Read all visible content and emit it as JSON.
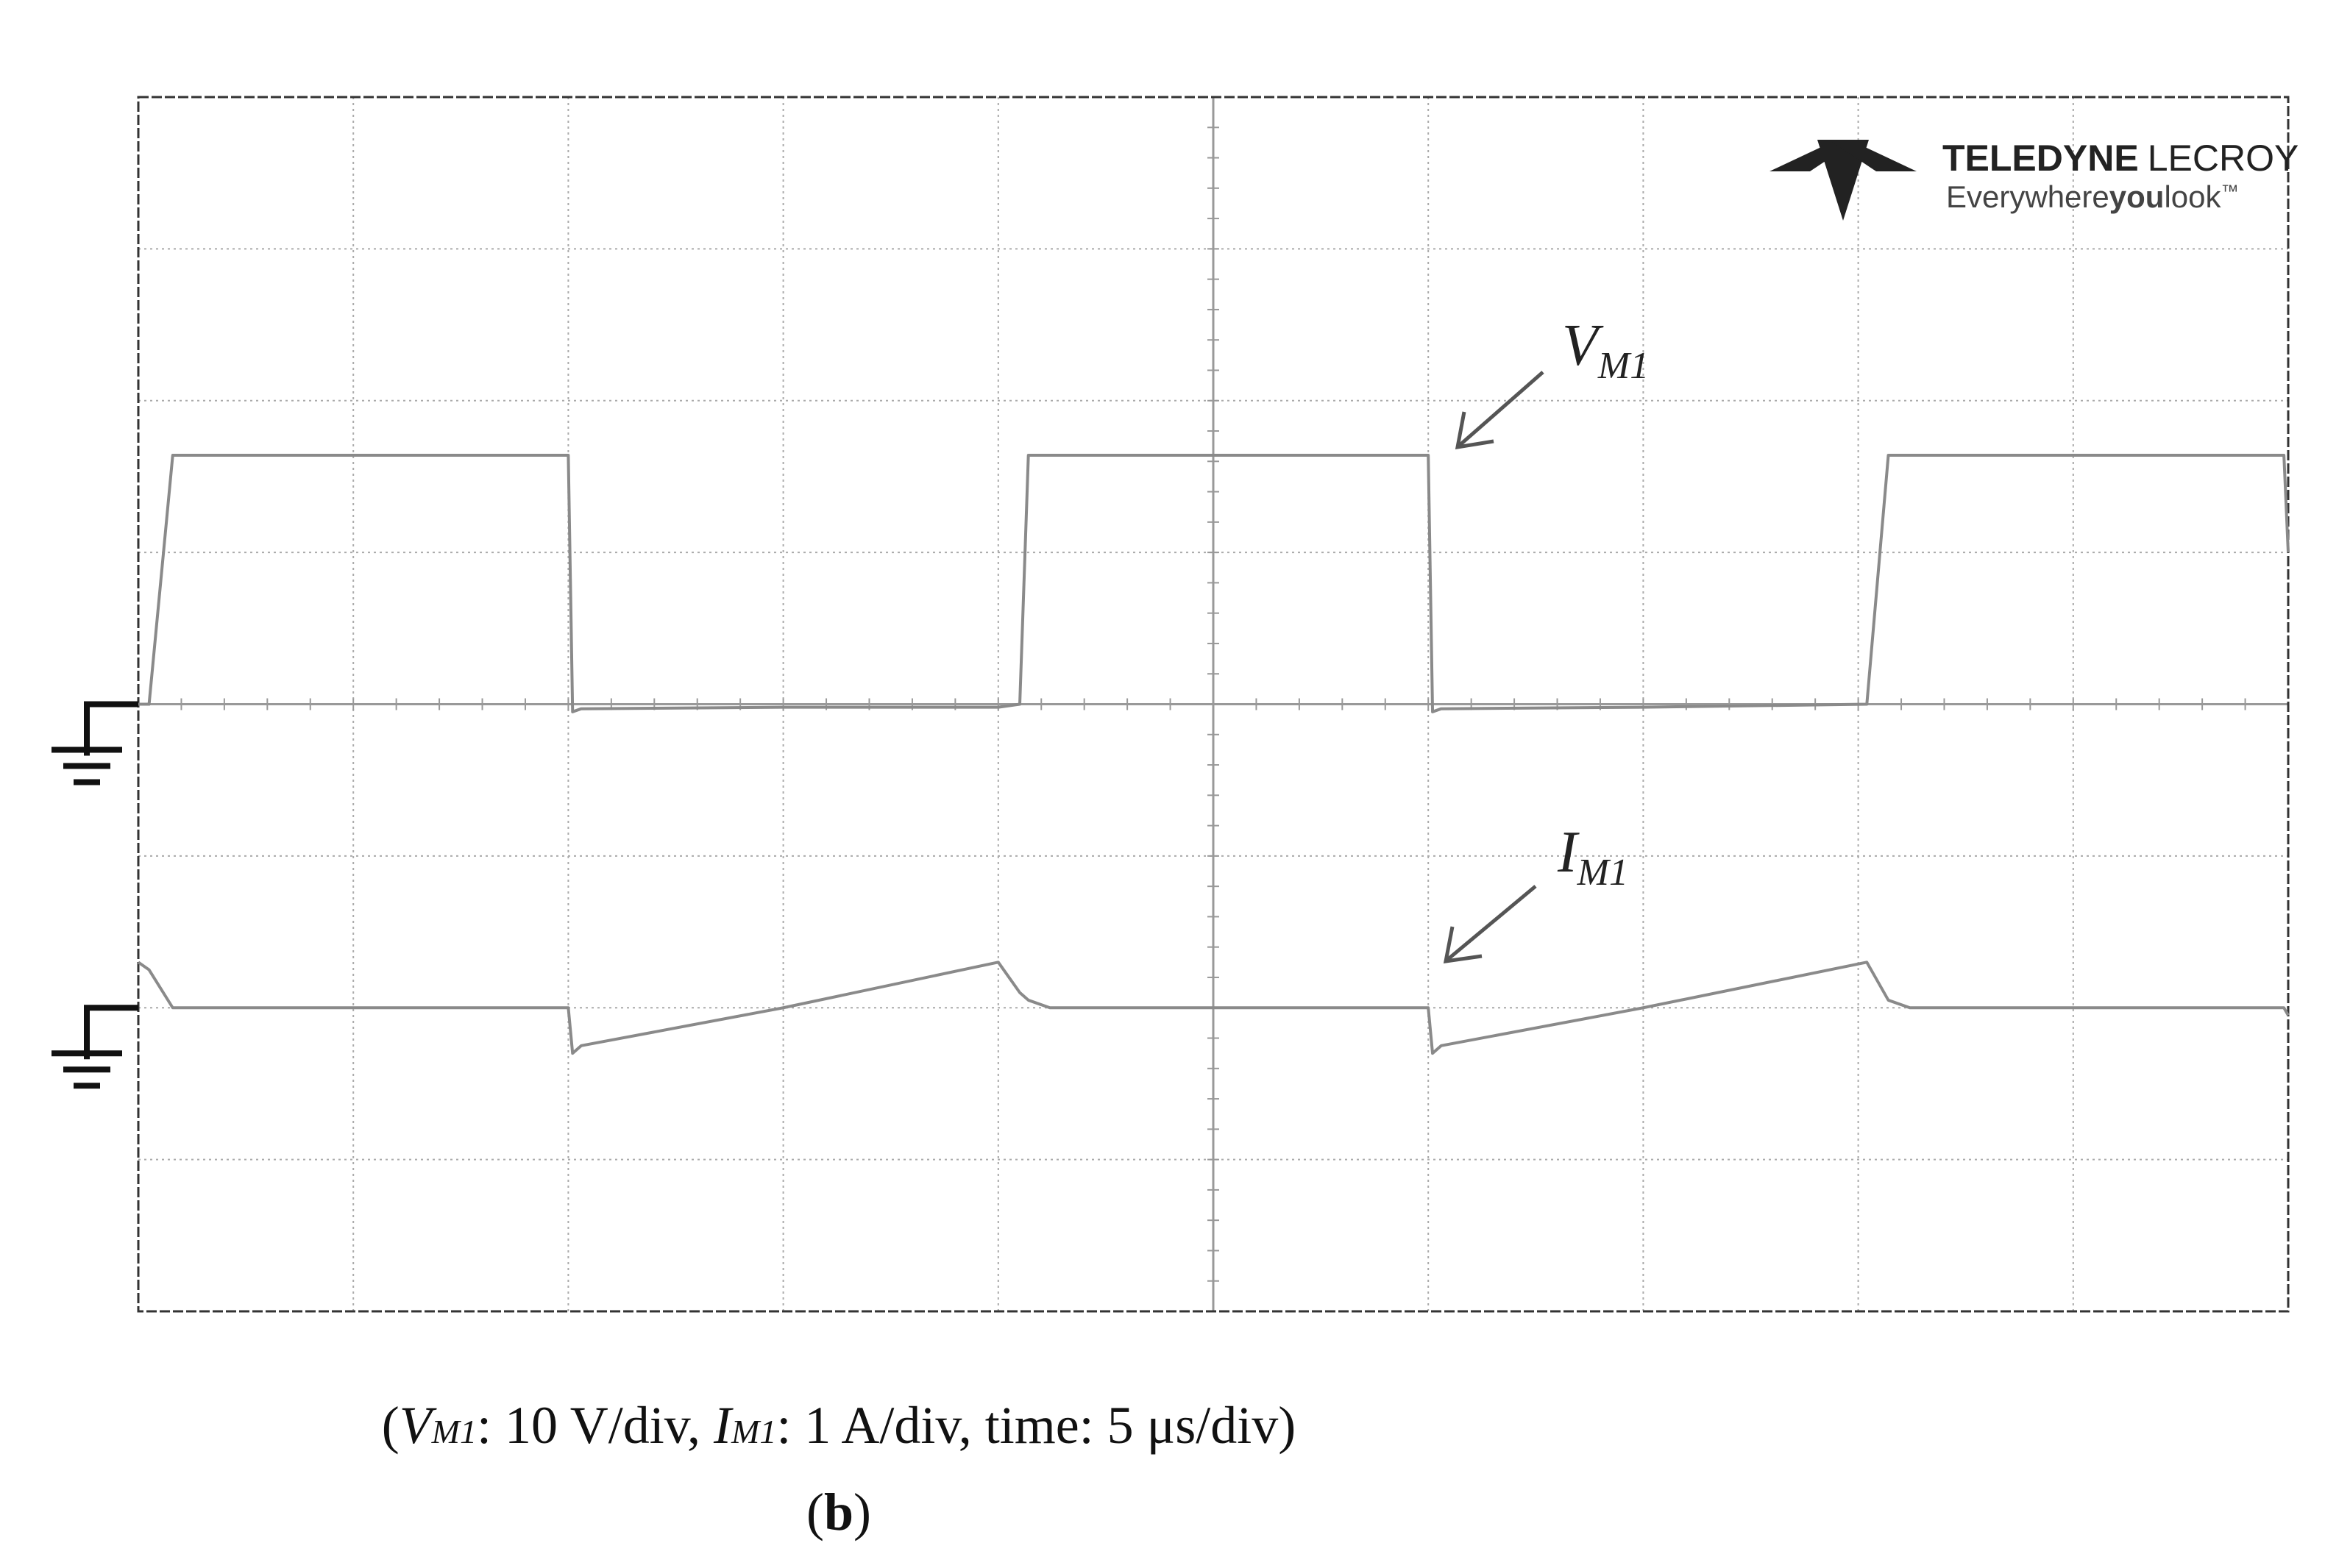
{
  "chart_data": {
    "type": "line",
    "logo": {
      "brand_bold": "TELEDYNE",
      "brand_light": "LECROY",
      "tagline_start": "Everywhere",
      "tagline_bold": "you",
      "tagline_end": "look",
      "tagline_mark": "™"
    },
    "annotations": [
      {
        "symbol": "V",
        "subscript": "M1"
      },
      {
        "symbol": "I",
        "subscript": "M1"
      }
    ],
    "caption": [
      "(",
      "V",
      "M1",
      ": 10 V/div, ",
      "I",
      "M1",
      ": 1 A/div, time: 5 μs/div)"
    ],
    "panel_label": [
      "(",
      "b",
      ")"
    ],
    "xlim": [
      0,
      50
    ],
    "ylim": [
      -40,
      40
    ],
    "y2lim": [
      -2,
      6
    ],
    "x": [
      0,
      0.25,
      0.8,
      10.0,
      10.1,
      10.3,
      15,
      20.0,
      20.5,
      20.7,
      21.2,
      30.0,
      30.1,
      30.3,
      35,
      40.2,
      40.7,
      41.2,
      49.9,
      50
    ],
    "series": [
      {
        "name": "V",
        "color": "#8a8a8a",
        "values": [
          0,
          0,
          16.4,
          16.4,
          -0.5,
          -0.3,
          -0.2,
          -0.2,
          0,
          16.4,
          16.4,
          16.4,
          -0.5,
          -0.3,
          -0.2,
          0,
          16.4,
          16.4,
          16.4,
          10
        ]
      },
      {
        "name": "I",
        "color": "#8a8a8a",
        "axis": "y2",
        "values": [
          0.3,
          0.25,
          0,
          0,
          -0.3,
          -0.25,
          0,
          0.3,
          0.1,
          0.05,
          0,
          0,
          -0.3,
          -0.25,
          0,
          0.3,
          0.05,
          0,
          0,
          -0.05
        ]
      }
    ]
  }
}
